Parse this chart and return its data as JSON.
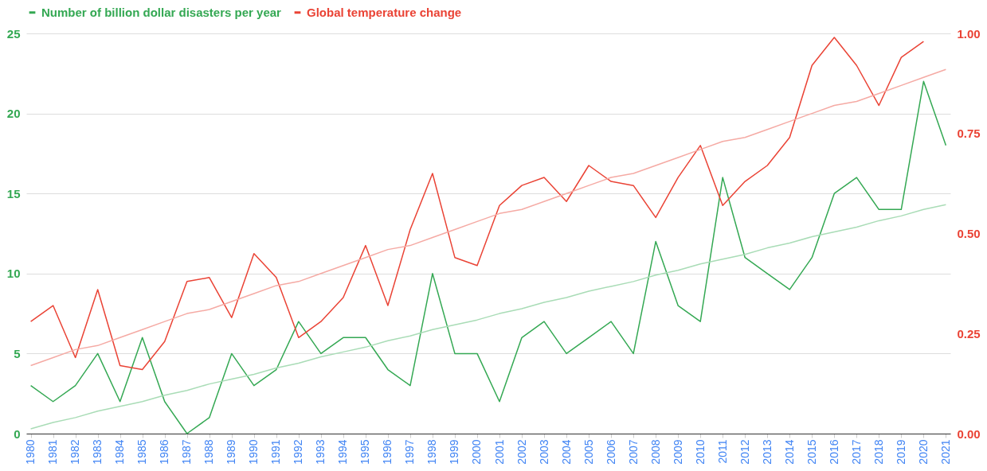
{
  "chart_data": {
    "type": "line",
    "categories": [
      "1980",
      "1981",
      "1982",
      "1983",
      "1984",
      "1985",
      "1986",
      "1987",
      "1988",
      "1989",
      "1990",
      "1991",
      "1992",
      "1993",
      "1994",
      "1995",
      "1996",
      "1997",
      "1998",
      "1999",
      "2000",
      "2001",
      "2002",
      "2003",
      "2004",
      "2005",
      "2006",
      "2007",
      "2008",
      "2009",
      "2010",
      "2011",
      "2012",
      "2013",
      "2014",
      "2015",
      "2016",
      "2017",
      "2018",
      "2019",
      "2020",
      "2021"
    ],
    "series": [
      {
        "name": "Number of billion dollar disasters per year",
        "color": "#34a853",
        "values": [
          3,
          2,
          3,
          5,
          2,
          6,
          2,
          0,
          1,
          5,
          3,
          4,
          7,
          5,
          6,
          6,
          4,
          3,
          10,
          5,
          5,
          2,
          6,
          7,
          5,
          6,
          7,
          5,
          12,
          8,
          7,
          16,
          11,
          10,
          9,
          11,
          15,
          16,
          14,
          14,
          22,
          18
        ]
      },
      {
        "name": "Global temperature change",
        "color": "#ea4335",
        "axis": "y2",
        "values": [
          0.28,
          0.32,
          0.19,
          0.36,
          0.17,
          0.16,
          0.23,
          0.38,
          0.39,
          0.29,
          0.45,
          0.39,
          0.24,
          0.28,
          0.34,
          0.47,
          0.32,
          0.51,
          0.65,
          0.44,
          0.42,
          0.57,
          0.62,
          0.64,
          0.58,
          0.67,
          0.63,
          0.62,
          0.54,
          0.64,
          0.72,
          0.57,
          0.63,
          0.67,
          0.74,
          0.92,
          0.99,
          0.92,
          0.82,
          0.94,
          0.98,
          null
        ]
      },
      {
        "type": "line",
        "color": "#a9dcb6",
        "values": [
          0.3,
          0.7,
          1.0,
          1.4,
          1.7,
          2.0,
          2.4,
          2.7,
          3.1,
          3.4,
          3.7,
          4.1,
          4.4,
          4.8,
          5.1,
          5.4,
          5.8,
          6.1,
          6.5,
          6.8,
          7.1,
          7.5,
          7.8,
          8.2,
          8.5,
          8.9,
          9.2,
          9.5,
          9.9,
          10.2,
          10.6,
          10.9,
          11.2,
          11.6,
          11.9,
          12.3,
          12.6,
          12.9,
          13.3,
          13.6,
          14.0,
          14.3
        ]
      },
      {
        "type": "line",
        "color": "#f5aaa4",
        "axis": "y2",
        "values": [
          0.17,
          0.19,
          0.21,
          0.22,
          0.24,
          0.26,
          0.28,
          0.3,
          0.31,
          0.33,
          0.35,
          0.37,
          0.38,
          0.4,
          0.42,
          0.44,
          0.46,
          0.47,
          0.49,
          0.51,
          0.53,
          0.55,
          0.56,
          0.58,
          0.6,
          0.62,
          0.64,
          0.65,
          0.67,
          0.69,
          0.71,
          0.73,
          0.74,
          0.76,
          0.78,
          0.8,
          0.82,
          0.83,
          0.85,
          0.87,
          0.89,
          0.91
        ]
      }
    ],
    "ylim": [
      0,
      25
    ],
    "yticks": [
      0,
      5,
      10,
      15,
      20,
      25
    ],
    "y2lim": [
      0,
      1
    ],
    "y2ticks": [
      {
        "value": 0,
        "label": "0.00"
      },
      {
        "value": 0.25,
        "label": "0.25"
      },
      {
        "value": 0.5,
        "label": "0.50"
      },
      {
        "value": 0.75,
        "label": "0.75"
      },
      {
        "value": 1,
        "label": "1.00"
      }
    ],
    "grid": "y",
    "legend": "top",
    "marker": "none",
    "line_style": "solid"
  }
}
